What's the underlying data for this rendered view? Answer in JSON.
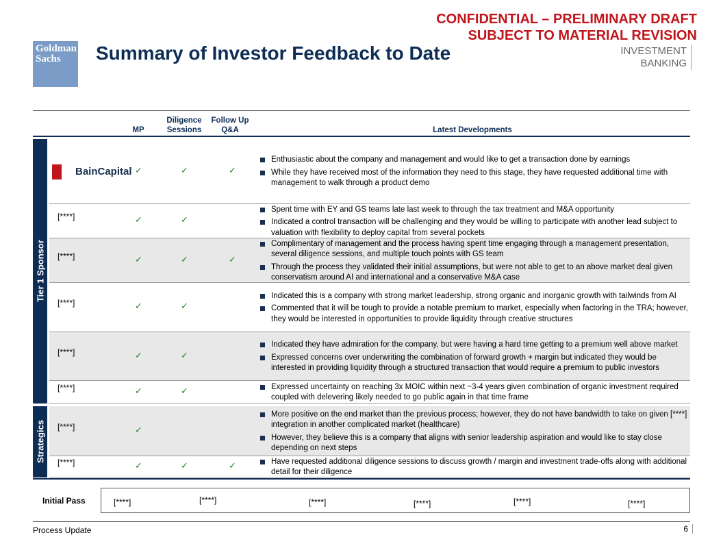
{
  "header": {
    "confidential": "CONFIDENTIAL – PRELIMINARY DRAFT",
    "revision": "SUBJECT TO MATERIAL REVISION",
    "title": "Summary of Investor Feedback to Date",
    "logo": [
      "Goldman",
      "Sachs"
    ],
    "division": [
      "INVESTMENT",
      "BANKING"
    ]
  },
  "table": {
    "columns": {
      "mp": "MP",
      "diligence": "Diligence Sessions",
      "qa": "Follow Up Q&A",
      "developments": "Latest Developments"
    },
    "groups": [
      {
        "label": "Tier 1 Sponsor"
      },
      {
        "label": "Strategics"
      }
    ],
    "rows": [
      {
        "investor": "BainCapital",
        "mp": "✓",
        "diligence": "✓",
        "qa": "✓",
        "developments": [
          "Enthusiastic about the company and management and would like to get a transaction done by earnings",
          "While they have received most of the information they need to this stage, they have requested additional time with management to walk through a product demo"
        ]
      },
      {
        "investor": "[****]",
        "mp": "✓",
        "diligence": "✓",
        "developments": [
          "Spent time with EY and GS teams late last week to through the tax treatment and M&A opportunity",
          "Indicated a control transaction will be challenging and they would be willing to participate with another lead subject to valuation with flexibility to deploy capital from several pockets"
        ]
      },
      {
        "investor": "[****]",
        "mp": "✓",
        "diligence": "✓",
        "qa": "✓",
        "developments": [
          "Complimentary of management and the process having spent time engaging through a management presentation, several diligence sessions, and multiple touch points with GS team",
          "Through the process they validated their initial assumptions, but were not able to get to an above market deal given conservatism around AI and international and a conservative M&A case"
        ]
      },
      {
        "investor": "[****]",
        "mp": "✓",
        "diligence": "✓",
        "developments": [
          "Indicated this is a company with strong market leadership, strong organic and inorganic growth with tailwinds from AI",
          "Commented that it will be tough to provide a notable premium to market, especially when factoring in the TRA; however, they would be interested in opportunities to provide liquidity through creative structures"
        ]
      },
      {
        "investor": "[****]",
        "mp": "✓",
        "diligence": "✓",
        "developments": [
          "Indicated they have admiration for the company, but were having a hard time getting to a premium well above market",
          "Expressed concerns over underwriting the combination of forward growth + margin but indicated they would be interested in providing liquidity through a structured transaction that would require a premium to public investors"
        ]
      },
      {
        "investor": "[****]",
        "mp": "✓",
        "diligence": "✓",
        "developments": [
          "Expressed uncertainty on reaching 3x MOIC within next ~3-4 years given combination of organic investment required coupled with delevering likely needed to go public again in that time frame"
        ]
      },
      {
        "investor": "[****]",
        "mp": "✓",
        "developments": [
          "More positive on the end market than the previous process; however, they do not have bandwidth to take on given [****] integration in another complicated market (healthcare)",
          "However, they believe this is a company that aligns with senior leadership aspiration and would like to stay close depending on next steps"
        ]
      },
      {
        "investor": "[****]",
        "mp": "✓",
        "diligence": "✓",
        "qa": "✓",
        "developments": [
          "Have requested additional diligence sessions to discuss growth / margin and investment trade-offs along with additional detail for their diligence"
        ]
      }
    ]
  },
  "initial_pass": {
    "label": "Initial Pass",
    "names": [
      "[****]",
      "[****]",
      "[****]",
      "[****]",
      "[****]",
      "[****]"
    ]
  },
  "footer": {
    "section": "Process Update",
    "page": "6"
  }
}
